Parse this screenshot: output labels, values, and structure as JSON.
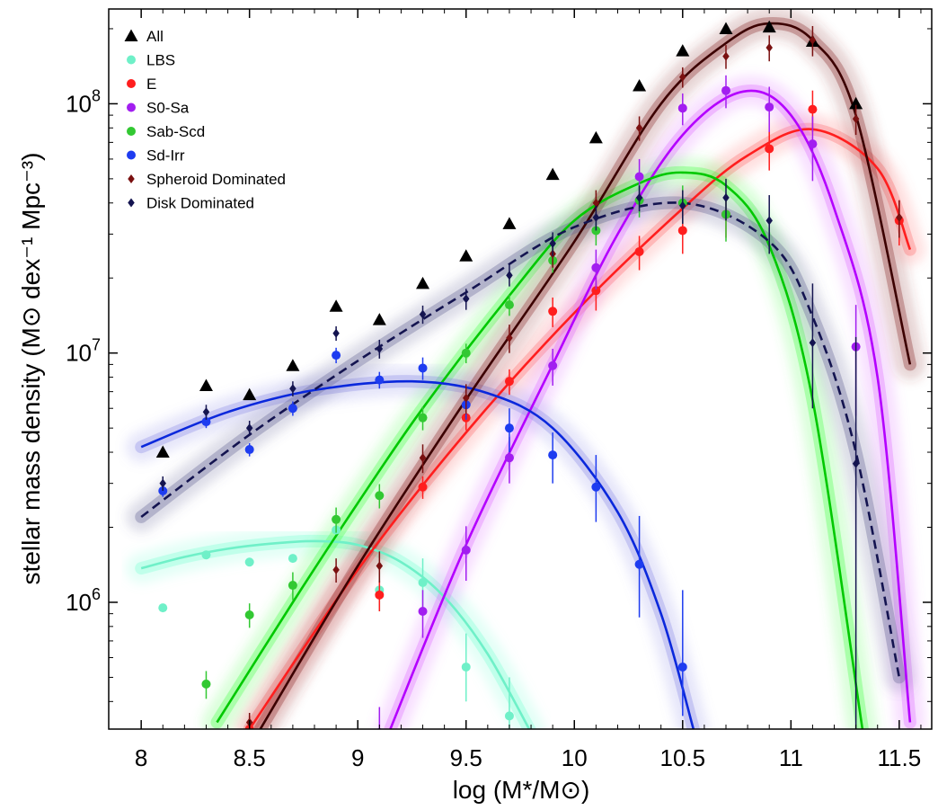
{
  "chart_data": {
    "type": "scatter",
    "xlabel": "log (M*/M⊙)",
    "ylabel": "stellar mass density (M⊙ dex⁻¹ Mpc⁻³)",
    "xlim": [
      7.85,
      11.65
    ],
    "ylim": [
      310000,
      240000000
    ],
    "yscale": "log",
    "x_ticks": [
      8,
      8.5,
      9,
      9.5,
      10,
      10.5,
      11,
      11.5
    ],
    "x_tick_labels": [
      "8",
      "8.5",
      "9",
      "9.5",
      "10",
      "10.5",
      "11",
      "11.5"
    ],
    "y_ticks": [
      1000000,
      10000000,
      100000000
    ],
    "y_tick_labels": [
      {
        "base": "10",
        "exp": "6"
      },
      {
        "base": "10",
        "exp": "7"
      },
      {
        "base": "10",
        "exp": "8"
      }
    ],
    "legend_position": "top-left",
    "series": [
      {
        "name": "All",
        "marker": "triangle",
        "color": "#000000",
        "x": [
          8.1,
          8.3,
          8.5,
          8.7,
          8.9,
          9.1,
          9.3,
          9.5,
          9.7,
          9.9,
          10.1,
          10.3,
          10.5,
          10.7,
          10.9,
          11.1,
          11.3
        ],
        "y": [
          4000000,
          7400000,
          6800000,
          8900000,
          15400000,
          13600000,
          19000000,
          24500000,
          33000000,
          52000000,
          73000000,
          118000000,
          163000000,
          200000000,
          203000000,
          178000000,
          100000000
        ]
      },
      {
        "name": "LBS",
        "marker": "circle",
        "color": "#6ff0c8",
        "x": [
          8.1,
          8.3,
          8.5,
          8.7,
          8.9,
          9.1,
          9.3,
          9.5,
          9.7
        ],
        "y": [
          950000,
          1550000,
          1450000,
          1500000,
          1950000,
          1120000,
          1200000,
          550000,
          350000
        ],
        "yerr_hi": [
          0,
          0,
          0,
          0,
          0,
          200000,
          300000,
          200000,
          150000
        ],
        "yerr_lo": [
          0,
          0,
          0,
          0,
          0,
          200000,
          300000,
          150000,
          80000
        ]
      },
      {
        "name": "E",
        "marker": "circle",
        "color": "#ff1e1e",
        "x": [
          8.5,
          9.1,
          9.3,
          9.5,
          9.7,
          9.9,
          10.1,
          10.3,
          10.5,
          10.7,
          10.9,
          11.1,
          11.5
        ],
        "y": [
          310000,
          1070000,
          2900000,
          5500000,
          7700000,
          14700000,
          17800000,
          25500000,
          31000000,
          36000000,
          66000000,
          95000000,
          34000000
        ],
        "yerr_hi": [
          40000,
          150000,
          300000,
          600000,
          900000,
          2000000,
          3000000,
          4000000,
          6000000,
          7000000,
          12000000,
          18000000,
          7000000
        ],
        "yerr_lo": [
          40000,
          150000,
          300000,
          600000,
          900000,
          2000000,
          3000000,
          4000000,
          6000000,
          7000000,
          12000000,
          18000000,
          7000000
        ]
      },
      {
        "name": "S0-Sa",
        "marker": "circle",
        "color": "#a21ef0",
        "x": [
          9.1,
          9.3,
          9.5,
          9.7,
          9.9,
          10.1,
          10.3,
          10.5,
          10.7,
          10.9,
          11.1,
          11.3
        ],
        "y": [
          300000,
          920000,
          1620000,
          3800000,
          8900000,
          22000000,
          51000000,
          96000000,
          113000000,
          97000000,
          69000000,
          10600000
        ],
        "yerr_hi": [
          80000,
          200000,
          400000,
          800000,
          1500000,
          4000000,
          9000000,
          14000000,
          17000000,
          20000000,
          20000000,
          5000000
        ],
        "yerr_lo": [
          80000,
          200000,
          400000,
          800000,
          1500000,
          4000000,
          9000000,
          14000000,
          17000000,
          20000000,
          20000000,
          5000000
        ]
      },
      {
        "name": "Sab-Scd",
        "marker": "circle",
        "color": "#32c832",
        "x": [
          8.3,
          8.5,
          8.7,
          8.9,
          9.1,
          9.3,
          9.5,
          9.7,
          9.9,
          10.1,
          10.3,
          10.5,
          10.7
        ],
        "y": [
          470000,
          890000,
          1170000,
          2150000,
          2680000,
          5500000,
          10000000,
          15600000,
          23500000,
          31000000,
          41000000,
          40000000,
          36000000
        ],
        "yerr_hi": [
          60000,
          100000,
          150000,
          250000,
          300000,
          600000,
          900000,
          1500000,
          2500000,
          4000000,
          6000000,
          7000000,
          8000000
        ],
        "yerr_lo": [
          60000,
          100000,
          150000,
          250000,
          300000,
          600000,
          900000,
          1500000,
          2500000,
          4000000,
          6000000,
          7000000,
          8000000
        ]
      },
      {
        "name": "Sd-Irr",
        "marker": "circle",
        "color": "#1e3cf0",
        "x": [
          8.1,
          8.3,
          8.5,
          8.7,
          8.9,
          9.1,
          9.3,
          9.5,
          9.7,
          9.9,
          10.1,
          10.3,
          10.5
        ],
        "y": [
          2800000,
          5300000,
          4100000,
          6000000,
          9800000,
          7800000,
          8700000,
          6200000,
          5000000,
          3900000,
          2900000,
          1420000,
          550000
        ],
        "yerr_hi": [
          150000,
          300000,
          250000,
          400000,
          700000,
          600000,
          900000,
          800000,
          1000000,
          900000,
          1000000,
          800000,
          570000
        ],
        "yerr_lo": [
          150000,
          300000,
          250000,
          400000,
          700000,
          600000,
          900000,
          800000,
          1000000,
          900000,
          800000,
          550000,
          200000
        ]
      },
      {
        "name": "Spheroid Dominated",
        "marker": "diamond",
        "color": "#7a1010",
        "x": [
          8.5,
          8.9,
          9.1,
          9.3,
          9.5,
          9.7,
          9.9,
          10.1,
          10.3,
          10.5,
          10.7,
          10.9,
          11.1,
          11.3,
          11.5
        ],
        "y": [
          330000,
          1350000,
          1400000,
          3800000,
          6600000,
          11500000,
          25000000,
          40000000,
          80000000,
          128000000,
          155000000,
          168000000,
          180000000,
          87000000,
          35000000
        ],
        "yerr_hi": [
          30000,
          150000,
          200000,
          500000,
          900000,
          1500000,
          3000000,
          5000000,
          9000000,
          12000000,
          17000000,
          20000000,
          25000000,
          12000000,
          6000000
        ],
        "yerr_lo": [
          30000,
          150000,
          200000,
          500000,
          900000,
          1500000,
          3000000,
          5000000,
          9000000,
          12000000,
          17000000,
          20000000,
          25000000,
          12000000,
          6000000
        ]
      },
      {
        "name": "Disk Dominated",
        "marker": "diamond",
        "color": "#141450",
        "x": [
          8.1,
          8.3,
          8.5,
          8.7,
          8.9,
          9.1,
          9.3,
          9.5,
          9.7,
          9.9,
          10.1,
          10.3,
          10.5,
          10.7,
          10.9,
          11.1,
          11.3
        ],
        "y": [
          3000000,
          5800000,
          5000000,
          7200000,
          12000000,
          10400000,
          14300000,
          16500000,
          20500000,
          27500000,
          35000000,
          42000000,
          39000000,
          42000000,
          34000000,
          11000000,
          3600000
        ],
        "yerr_hi": [
          200000,
          400000,
          350000,
          500000,
          800000,
          900000,
          1200000,
          1600000,
          2000000,
          3000000,
          4000000,
          5000000,
          6000000,
          8000000,
          9000000,
          8000000,
          8000000
        ],
        "yerr_lo": [
          200000,
          400000,
          350000,
          500000,
          800000,
          900000,
          1200000,
          1600000,
          2000000,
          3000000,
          4000000,
          5000000,
          6000000,
          8000000,
          9000000,
          5000000,
          3300000
        ]
      }
    ],
    "fits": [
      {
        "name": "LBS",
        "color": "#6ff0c8",
        "band": "#7fffd4",
        "style": "solid",
        "x": [
          8.0,
          8.2,
          8.4,
          8.6,
          8.8,
          9.0,
          9.2,
          9.4,
          9.6,
          9.8
        ],
        "y": [
          1370000,
          1520000,
          1640000,
          1720000,
          1760000,
          1700000,
          1450000,
          1050000,
          620000,
          300000
        ]
      },
      {
        "name": "E",
        "color": "#ff1e1e",
        "band": "#ff7070",
        "style": "solid",
        "x": [
          8.5,
          9.0,
          9.5,
          10.0,
          10.5,
          10.8,
          11.1,
          11.4,
          11.55
        ],
        "y": [
          310000,
          1350000,
          4800000,
          14500000,
          38000000,
          62000000,
          79000000,
          55000000,
          26000000
        ]
      },
      {
        "name": "S0-Sa",
        "color": "#b400ff",
        "band": "#e070ff",
        "style": "solid",
        "x": [
          9.15,
          9.5,
          9.9,
          10.2,
          10.5,
          10.78,
          11.0,
          11.2,
          11.4,
          11.55
        ],
        "y": [
          310000,
          1700000,
          9000000,
          30000000,
          75000000,
          112000000,
          90000000,
          38000000,
          8000000,
          330000
        ]
      },
      {
        "name": "Sab-Scd",
        "color": "#00c800",
        "band": "#50ff50",
        "style": "solid",
        "x": [
          8.35,
          8.7,
          9.0,
          9.3,
          9.7,
          10.0,
          10.3,
          10.5,
          10.7,
          10.9,
          11.1,
          11.33
        ],
        "y": [
          330000,
          1000000,
          2500000,
          6000000,
          17000000,
          34000000,
          48000000,
          53000000,
          47000000,
          27000000,
          6500000,
          310000
        ]
      },
      {
        "name": "Sd-Irr",
        "color": "#0a28dc",
        "band": "#8c8ce6",
        "style": "solid",
        "x": [
          8.0,
          8.4,
          8.8,
          9.25,
          9.6,
          9.9,
          10.2,
          10.4,
          10.55
        ],
        "y": [
          4200000,
          5800000,
          7100000,
          7700000,
          6900000,
          5000000,
          2300000,
          900000,
          310000
        ]
      },
      {
        "name": "Spheroid Dominated",
        "color": "#3c0000",
        "band": "#8c3232",
        "style": "solid",
        "x": [
          8.55,
          9.0,
          9.5,
          10.0,
          10.4,
          10.7,
          10.9,
          11.1,
          11.3,
          11.55
        ],
        "y": [
          310000,
          1400000,
          6500000,
          28000000,
          100000000,
          175000000,
          210000000,
          180000000,
          90000000,
          9000000
        ]
      },
      {
        "name": "Disk Dominated",
        "color": "#141450",
        "band": "#646496",
        "style": "dashed",
        "x": [
          8.0,
          8.5,
          9.0,
          9.5,
          10.0,
          10.5,
          10.9,
          11.1,
          11.3,
          11.5
        ],
        "y": [
          2200000,
          4700000,
          9300000,
          17500000,
          32000000,
          40000000,
          28000000,
          14000000,
          4000000,
          500000
        ]
      }
    ]
  }
}
